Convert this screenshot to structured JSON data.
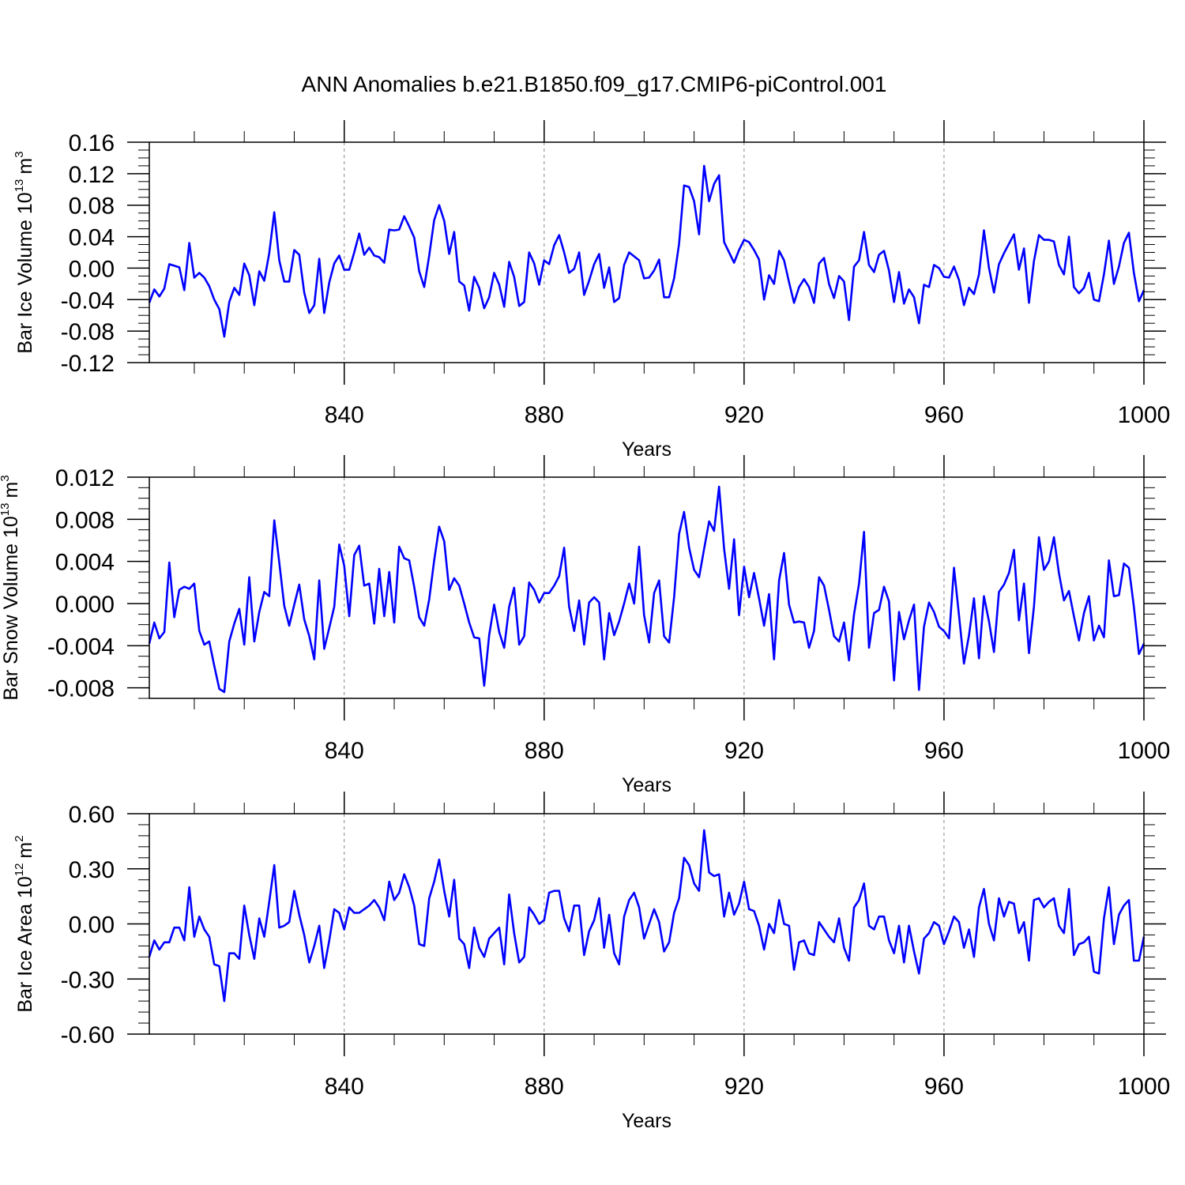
{
  "title": "ANN Anomalies b.e21.B1850.f09_g17.CMIP6-piControl.001",
  "colors": {
    "line": "#0000ff",
    "axis": "#000000",
    "grid": "#888888"
  },
  "chart_data": [
    {
      "type": "line",
      "name": "ice-volume",
      "ylabel_main": "Bar Ice Volume 10",
      "ylabel_exp": "13",
      "ylabel_unit": "m",
      "ylabel_unit_exp": "3",
      "xlabel": "Years",
      "xlim": [
        801,
        1000
      ],
      "ylim": [
        -0.12,
        0.16
      ],
      "x_ticks": [
        840,
        880,
        920,
        960,
        1000
      ],
      "x_tick_labels": [
        "840",
        "880",
        "920",
        "960",
        "1000"
      ],
      "y_ticks": [
        -0.12,
        -0.08,
        -0.04,
        0.0,
        0.04,
        0.08,
        0.12,
        0.16
      ],
      "y_tick_labels": [
        "-0.12",
        "-0.08",
        "-0.04",
        "0.00",
        "0.04",
        "0.08",
        "0.12",
        "0.16"
      ],
      "y_minor_step": 0.01,
      "x_start": 801,
      "values": [
        -0.044,
        -0.027,
        -0.036,
        -0.026,
        0.005,
        0.003,
        0.001,
        -0.028,
        0.032,
        -0.012,
        -0.006,
        -0.012,
        -0.023,
        -0.04,
        -0.052,
        -0.087,
        -0.043,
        -0.025,
        -0.034,
        0.006,
        -0.009,
        -0.047,
        -0.004,
        -0.016,
        0.019,
        0.071,
        0.01,
        -0.017,
        -0.017,
        0.023,
        0.017,
        -0.031,
        -0.057,
        -0.047,
        0.012,
        -0.057,
        -0.018,
        0.006,
        0.016,
        -0.002,
        -0.002,
        0.02,
        0.044,
        0.017,
        0.026,
        0.016,
        0.014,
        0.007,
        0.049,
        0.048,
        0.049,
        0.066,
        0.053,
        0.039,
        -0.004,
        -0.024,
        0.016,
        0.061,
        0.08,
        0.06,
        0.018,
        0.046,
        -0.017,
        -0.022,
        -0.054,
        -0.011,
        -0.025,
        -0.051,
        -0.037,
        -0.006,
        -0.021,
        -0.049,
        0.008,
        -0.011,
        -0.048,
        -0.043,
        0.02,
        0.006,
        -0.021,
        0.01,
        0.005,
        0.029,
        0.042,
        0.02,
        -0.006,
        -0.001,
        0.02,
        -0.034,
        -0.016,
        0.005,
        0.018,
        -0.025,
        0.001,
        -0.043,
        -0.038,
        0.004,
        0.02,
        0.015,
        0.01,
        -0.013,
        -0.012,
        -0.003,
        0.011,
        -0.037,
        -0.037,
        -0.013,
        0.031,
        0.105,
        0.103,
        0.085,
        0.043,
        0.13,
        0.085,
        0.107,
        0.118,
        0.033,
        0.02,
        0.007,
        0.023,
        0.036,
        0.033,
        0.023,
        0.011,
        -0.04,
        -0.009,
        -0.02,
        0.022,
        0.01,
        -0.018,
        -0.044,
        -0.024,
        -0.014,
        -0.024,
        -0.044,
        0.006,
        0.013,
        -0.02,
        -0.038,
        -0.01,
        -0.017,
        -0.066,
        0.002,
        0.01,
        0.046,
        0.004,
        -0.005,
        0.017,
        0.022,
        -0.003,
        -0.043,
        -0.005,
        -0.045,
        -0.027,
        -0.037,
        -0.07,
        -0.021,
        -0.024,
        0.004,
        0.0,
        -0.011,
        -0.012,
        0.002,
        -0.015,
        -0.047,
        -0.025,
        -0.033,
        -0.008,
        0.048,
        0.0,
        -0.031,
        0.005,
        0.019,
        0.031,
        0.043,
        -0.002,
        0.025,
        -0.044,
        0.009,
        0.042,
        0.036,
        0.036,
        0.034,
        0.004,
        -0.008,
        0.04,
        -0.024,
        -0.032,
        -0.025,
        -0.006,
        -0.04,
        -0.042,
        -0.008,
        0.035,
        -0.02,
        0.002,
        0.032,
        0.045,
        -0.006,
        -0.042,
        -0.028
      ]
    },
    {
      "type": "line",
      "name": "snow-volume",
      "ylabel_main": "Bar Snow Volume 10",
      "ylabel_exp": "13",
      "ylabel_unit": "m",
      "ylabel_unit_exp": "3",
      "xlabel": "Years",
      "xlim": [
        801,
        1000
      ],
      "ylim": [
        -0.009,
        0.012
      ],
      "x_ticks": [
        840,
        880,
        920,
        960,
        1000
      ],
      "x_tick_labels": [
        "840",
        "880",
        "920",
        "960",
        "1000"
      ],
      "y_ticks": [
        -0.008,
        -0.004,
        0.0,
        0.004,
        0.008,
        0.012
      ],
      "y_tick_labels": [
        "-0.008",
        "-0.004",
        "0.000",
        "0.004",
        "0.008",
        "0.012"
      ],
      "y_minor_step": 0.001,
      "x_start": 801,
      "values": [
        -0.0038,
        -0.0018,
        -0.0033,
        -0.0027,
        0.0039,
        -0.0013,
        0.0013,
        0.0016,
        0.0014,
        0.0019,
        -0.0026,
        -0.0039,
        -0.0036,
        -0.0059,
        -0.0081,
        -0.0084,
        -0.0036,
        -0.0019,
        -0.0005,
        -0.0039,
        0.0025,
        -0.0036,
        -0.0008,
        0.0011,
        0.0007,
        0.0079,
        0.0039,
        -0.0002,
        -0.0021,
        -0.0001,
        0.0018,
        -0.0015,
        -0.0031,
        -0.0053,
        0.0022,
        -0.0043,
        -0.0023,
        -0.0003,
        0.0056,
        0.0036,
        -0.0012,
        0.0046,
        0.0055,
        0.0017,
        0.0019,
        -0.0019,
        0.0033,
        -0.0012,
        0.003,
        -0.0018,
        0.0054,
        0.0043,
        0.0041,
        0.0016,
        -0.0013,
        -0.0021,
        0.0004,
        0.0041,
        0.0073,
        0.0059,
        0.0013,
        0.0024,
        0.0017,
        0.0,
        -0.0018,
        -0.0032,
        -0.0033,
        -0.0078,
        -0.003,
        -0.0001,
        -0.0027,
        -0.0042,
        -0.0003,
        0.0015,
        -0.0039,
        -0.0031,
        0.002,
        0.0013,
        0.0001,
        0.001,
        0.001,
        0.0017,
        0.0026,
        0.0053,
        -0.0003,
        -0.0026,
        0.0003,
        -0.0039,
        0.0001,
        0.0006,
        0.0001,
        -0.0053,
        -0.0009,
        -0.003,
        -0.0017,
        0.0,
        0.0019,
        0.0,
        0.0054,
        -0.0011,
        -0.0037,
        0.001,
        0.0022,
        -0.0031,
        -0.0037,
        0.0006,
        0.0066,
        0.0087,
        0.0053,
        0.0032,
        0.0025,
        0.0052,
        0.0078,
        0.0069,
        0.0111,
        0.0052,
        0.0014,
        0.0061,
        -0.0011,
        0.0035,
        0.0006,
        0.0029,
        0.0005,
        -0.0021,
        0.0009,
        -0.0053,
        0.0022,
        0.0048,
        -0.0001,
        -0.0018,
        -0.0017,
        -0.0018,
        -0.0042,
        -0.0026,
        0.0025,
        0.0017,
        -0.0006,
        -0.0031,
        -0.0036,
        -0.0018,
        -0.0054,
        -0.001,
        0.0019,
        0.0068,
        -0.0042,
        -0.0009,
        -0.0006,
        0.0016,
        0.0002,
        -0.0073,
        -0.0008,
        -0.0034,
        -0.0016,
        -0.0001,
        -0.0082,
        -0.0022,
        0.0001,
        -0.0008,
        -0.0022,
        -0.0026,
        -0.0033,
        0.0034,
        -0.0011,
        -0.0057,
        -0.003,
        0.0005,
        -0.0052,
        0.0007,
        -0.0017,
        -0.0046,
        0.0011,
        0.0018,
        0.0029,
        0.0051,
        -0.0016,
        0.0019,
        -0.0047,
        -0.0003,
        0.0063,
        0.0032,
        0.004,
        0.0063,
        0.0029,
        0.0003,
        0.0012,
        -0.0012,
        -0.0035,
        -0.0009,
        0.0007,
        -0.0035,
        -0.0021,
        -0.0032,
        0.0041,
        0.0007,
        0.0008,
        0.0038,
        0.0034,
        -0.0003,
        -0.0048,
        -0.0038
      ]
    },
    {
      "type": "line",
      "name": "ice-area",
      "ylabel_main": "Bar Ice Area 10",
      "ylabel_exp": "12",
      "ylabel_unit": "m",
      "ylabel_unit_exp": "2",
      "xlabel": "Years",
      "xlim": [
        801,
        1000
      ],
      "ylim": [
        -0.6,
        0.6
      ],
      "x_ticks": [
        840,
        880,
        920,
        960,
        1000
      ],
      "x_tick_labels": [
        "840",
        "880",
        "920",
        "960",
        "1000"
      ],
      "y_ticks": [
        -0.6,
        -0.3,
        0.0,
        0.3,
        0.6
      ],
      "y_tick_labels": [
        "-0.60",
        "-0.30",
        "0.00",
        "0.30",
        "0.60"
      ],
      "y_minor_step": 0.06,
      "x_start": 801,
      "values": [
        -0.18,
        -0.09,
        -0.14,
        -0.1,
        -0.1,
        -0.02,
        -0.02,
        -0.09,
        0.2,
        -0.07,
        0.04,
        -0.03,
        -0.07,
        -0.22,
        -0.23,
        -0.42,
        -0.16,
        -0.16,
        -0.19,
        0.1,
        -0.06,
        -0.19,
        0.03,
        -0.07,
        0.12,
        0.32,
        -0.02,
        -0.01,
        0.01,
        0.18,
        0.05,
        -0.06,
        -0.21,
        -0.12,
        -0.01,
        -0.24,
        -0.09,
        0.08,
        0.06,
        -0.03,
        0.09,
        0.06,
        0.06,
        0.08,
        0.1,
        0.13,
        0.09,
        0.02,
        0.23,
        0.13,
        0.17,
        0.27,
        0.2,
        0.1,
        -0.11,
        -0.12,
        0.14,
        0.23,
        0.35,
        0.18,
        0.04,
        0.24,
        -0.08,
        -0.11,
        -0.24,
        -0.02,
        -0.13,
        -0.18,
        -0.08,
        -0.05,
        -0.02,
        -0.22,
        0.16,
        -0.05,
        -0.21,
        -0.18,
        0.09,
        0.05,
        0.0,
        0.02,
        0.17,
        0.18,
        0.18,
        0.03,
        -0.04,
        0.1,
        0.1,
        -0.17,
        -0.04,
        0.02,
        0.14,
        -0.13,
        0.05,
        -0.16,
        -0.22,
        0.04,
        0.13,
        0.17,
        0.09,
        -0.08,
        0.0,
        0.08,
        0.01,
        -0.15,
        -0.1,
        0.06,
        0.14,
        0.36,
        0.32,
        0.22,
        0.18,
        0.51,
        0.28,
        0.26,
        0.27,
        0.04,
        0.17,
        0.05,
        0.11,
        0.23,
        0.08,
        0.07,
        -0.01,
        -0.14,
        0.0,
        -0.05,
        0.13,
        0.0,
        -0.01,
        -0.25,
        -0.1,
        -0.09,
        -0.16,
        -0.17,
        0.01,
        -0.03,
        -0.07,
        -0.1,
        0.03,
        -0.13,
        -0.2,
        0.09,
        0.13,
        0.22,
        -0.01,
        -0.03,
        0.04,
        0.04,
        -0.09,
        -0.16,
        -0.01,
        -0.21,
        -0.01,
        -0.15,
        -0.27,
        -0.08,
        -0.05,
        0.01,
        -0.01,
        -0.11,
        -0.04,
        0.04,
        0.01,
        -0.13,
        -0.03,
        -0.18,
        0.09,
        0.19,
        0.0,
        -0.09,
        0.14,
        0.04,
        0.12,
        0.11,
        -0.05,
        0.01,
        -0.2,
        0.13,
        0.14,
        0.09,
        0.12,
        0.14,
        -0.01,
        -0.05,
        0.19,
        -0.17,
        -0.11,
        -0.1,
        -0.07,
        -0.26,
        -0.27,
        0.03,
        0.2,
        -0.11,
        0.05,
        0.1,
        0.13,
        -0.2,
        -0.2,
        -0.07
      ]
    }
  ]
}
